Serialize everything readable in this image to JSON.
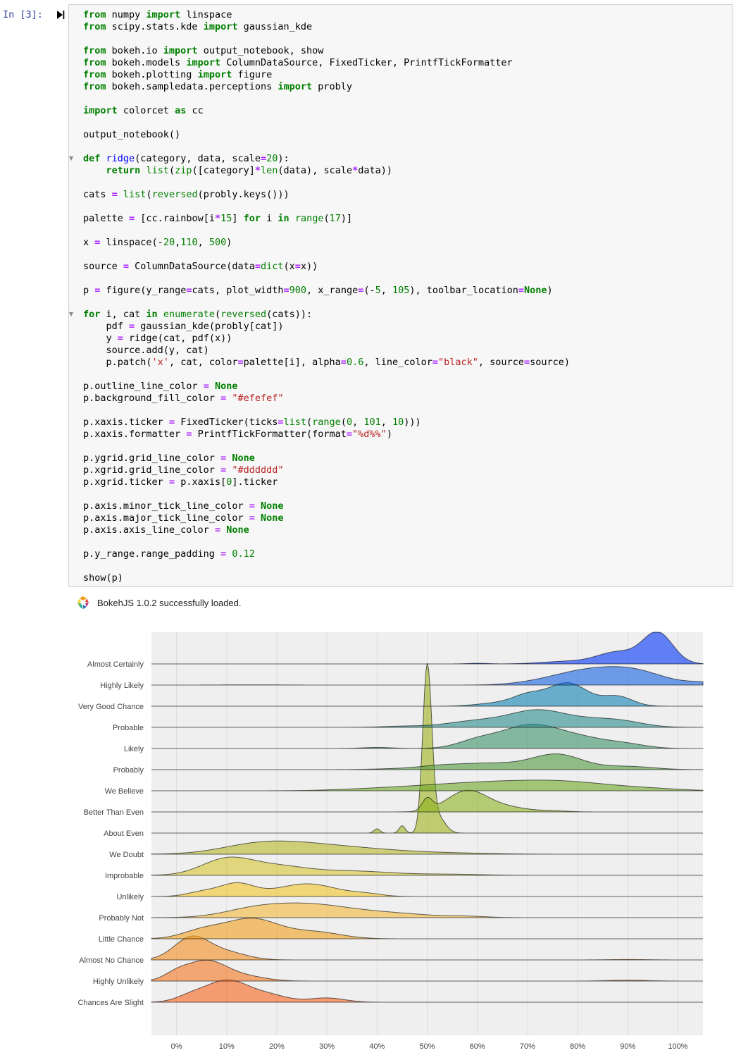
{
  "cell": {
    "prompt": "In [3]:",
    "code_lines": [
      "from numpy import linspace",
      "from scipy.stats.kde import gaussian_kde",
      "",
      "from bokeh.io import output_notebook, show",
      "from bokeh.models import ColumnDataSource, FixedTicker, PrintfTickFormatter",
      "from bokeh.plotting import figure",
      "from bokeh.sampledata.perceptions import probly",
      "",
      "import colorcet as cc",
      "",
      "output_notebook()",
      "",
      "def ridge(category, data, scale=20):",
      "    return list(zip([category]*len(data), scale*data))",
      "",
      "cats = list(reversed(probly.keys()))",
      "",
      "palette = [cc.rainbow[i*15] for i in range(17)]",
      "",
      "x = linspace(-20,110, 500)",
      "",
      "source = ColumnDataSource(data=dict(x=x))",
      "",
      "p = figure(y_range=cats, plot_width=900, x_range=(-5, 105), toolbar_location=None)",
      "",
      "for i, cat in enumerate(reversed(cats)):",
      "    pdf = gaussian_kde(probly[cat])",
      "    y = ridge(cat, pdf(x))",
      "    source.add(y, cat)",
      "    p.patch('x', cat, color=palette[i], alpha=0.6, line_color=\"black\", source=source)",
      "",
      "p.outline_line_color = None",
      "p.background_fill_color = \"#efefef\"",
      "",
      "p.xaxis.ticker = FixedTicker(ticks=list(range(0, 101, 10)))",
      "p.xaxis.formatter = PrintfTickFormatter(format=\"%d%%\")",
      "",
      "p.ygrid.grid_line_color = None",
      "p.xgrid.grid_line_color = \"#dddddd\"",
      "p.xgrid.ticker = p.xaxis[0].ticker",
      "",
      "p.axis.minor_tick_line_color = None",
      "p.axis.major_tick_line_color = None",
      "p.axis.axis_line_color = None",
      "",
      "p.y_range.range_padding = 0.12",
      "",
      "show(p)"
    ]
  },
  "output": {
    "status_text": "BokehJS 1.0.2 successfully loaded."
  },
  "chart_data": {
    "type": "area",
    "title": "",
    "xlabel": "",
    "ylabel": "",
    "xlim": [
      -5,
      105
    ],
    "x_ticks": [
      0,
      10,
      20,
      30,
      40,
      50,
      60,
      70,
      80,
      90,
      100
    ],
    "x_tick_format": "%",
    "background": "#efefef",
    "grid": "x only",
    "categories": [
      "Almost Certainly",
      "Highly Likely",
      "Very Good Chance",
      "Probable",
      "Likely",
      "Probably",
      "We Believe",
      "Better Than Even",
      "About Even",
      "We Doubt",
      "Improbable",
      "Unlikely",
      "Probably Not",
      "Little Chance",
      "Almost No Chance",
      "Highly Unlikely",
      "Chances Are Slight"
    ],
    "colors": [
      "#0034f8",
      "#1460e0",
      "#0e82b4",
      "#2a8c8c",
      "#3b9168",
      "#4d9a3c",
      "#6ea624",
      "#8ab21e",
      "#9eb21c",
      "#b8b82a",
      "#d4c430",
      "#f2c428",
      "#f4b83a",
      "#f29f1c",
      "#f38c1e",
      "#f4741e",
      "#f6631e"
    ],
    "series": [
      {
        "name": "Almost Certainly",
        "peaks": [
          [
            96,
            3.0,
            1.45
          ],
          [
            88,
            4.0,
            0.55
          ],
          [
            78,
            5.0,
            0.12
          ],
          [
            60,
            2.0,
            0.03
          ]
        ]
      },
      {
        "name": "Highly Likely",
        "peaks": [
          [
            90,
            6.5,
            0.75
          ],
          [
            80,
            5.5,
            0.45
          ],
          [
            72,
            5.0,
            0.12
          ],
          [
            105,
            3.0,
            0.1
          ],
          [
            15,
            6.0,
            0.01
          ]
        ]
      },
      {
        "name": "Very Good Chance",
        "peaks": [
          [
            78,
            4.0,
            1.1
          ],
          [
            70,
            3.0,
            0.45
          ],
          [
            88,
            3.0,
            0.45
          ],
          [
            64,
            4.0,
            0.15
          ]
        ]
      },
      {
        "name": "Probable",
        "peaks": [
          [
            72,
            5.5,
            0.75
          ],
          [
            60,
            6.0,
            0.3
          ],
          [
            84,
            6.0,
            0.35
          ],
          [
            45,
            4.0,
            0.05
          ],
          [
            90,
            4.0,
            0.1
          ]
        ]
      },
      {
        "name": "Likely",
        "peaks": [
          [
            70,
            5.5,
            1.0
          ],
          [
            60,
            4.0,
            0.35
          ],
          [
            80,
            6.0,
            0.5
          ],
          [
            40,
            3.0,
            0.05
          ],
          [
            90,
            4.0,
            0.15
          ]
        ]
      },
      {
        "name": "Probably",
        "peaks": [
          [
            76,
            5.0,
            0.7
          ],
          [
            62,
            7.0,
            0.3
          ],
          [
            52,
            4.0,
            0.1
          ],
          [
            90,
            5.0,
            0.15
          ],
          [
            44,
            5.0,
            0.04
          ]
        ]
      },
      {
        "name": "We Believe",
        "peaks": [
          [
            60,
            12.0,
            0.35
          ],
          [
            78,
            10.0,
            0.35
          ],
          [
            40,
            8.0,
            0.06
          ],
          [
            95,
            6.0,
            0.06
          ]
        ]
      },
      {
        "name": "Better Than Even",
        "peaks": [
          [
            58,
            4.0,
            1.0
          ],
          [
            50,
            1.0,
            0.55
          ],
          [
            66,
            4.0,
            0.2
          ],
          [
            75,
            3.0,
            0.05
          ]
        ]
      },
      {
        "name": "About Even",
        "peaks": [
          [
            50,
            0.9,
            7.7
          ],
          [
            45,
            0.6,
            0.35
          ],
          [
            40,
            0.6,
            0.2
          ],
          [
            52,
            1.5,
            0.8
          ]
        ]
      },
      {
        "name": "We Doubt",
        "peaks": [
          [
            25,
            9.0,
            0.45
          ],
          [
            15,
            7.0,
            0.3
          ],
          [
            40,
            8.0,
            0.15
          ],
          [
            55,
            8.0,
            0.05
          ]
        ]
      },
      {
        "name": "Improbable",
        "peaks": [
          [
            10,
            5.0,
            0.75
          ],
          [
            20,
            6.0,
            0.4
          ],
          [
            35,
            8.0,
            0.2
          ],
          [
            55,
            6.0,
            0.05
          ]
        ]
      },
      {
        "name": "Unlikely",
        "peaks": [
          [
            12,
            3.5,
            0.6
          ],
          [
            26,
            6.0,
            0.6
          ],
          [
            5,
            3.0,
            0.2
          ],
          [
            38,
            3.0,
            0.1
          ]
        ]
      },
      {
        "name": "Probably Not",
        "peaks": [
          [
            26,
            8.0,
            0.6
          ],
          [
            15,
            6.0,
            0.3
          ],
          [
            42,
            8.0,
            0.2
          ],
          [
            58,
            4.0,
            0.05
          ]
        ]
      },
      {
        "name": "Little Chance",
        "peaks": [
          [
            15,
            5.5,
            0.95
          ],
          [
            5,
            4.0,
            0.35
          ],
          [
            28,
            5.0,
            0.3
          ]
        ]
      },
      {
        "name": "Almost No Chance",
        "peaks": [
          [
            3,
            3.5,
            1.05
          ],
          [
            10,
            4.0,
            0.35
          ],
          [
            90,
            4.0,
            0.02
          ]
        ]
      },
      {
        "name": "Highly Unlikely",
        "peaks": [
          [
            6,
            4.0,
            0.95
          ],
          [
            0,
            2.5,
            0.3
          ],
          [
            14,
            4.0,
            0.2
          ],
          [
            90,
            4.0,
            0.04
          ]
        ]
      },
      {
        "name": "Chances Are Slight",
        "peaks": [
          [
            10,
            4.0,
            1.0
          ],
          [
            3,
            3.0,
            0.3
          ],
          [
            18,
            4.0,
            0.35
          ],
          [
            30,
            3.5,
            0.2
          ]
        ]
      }
    ]
  }
}
